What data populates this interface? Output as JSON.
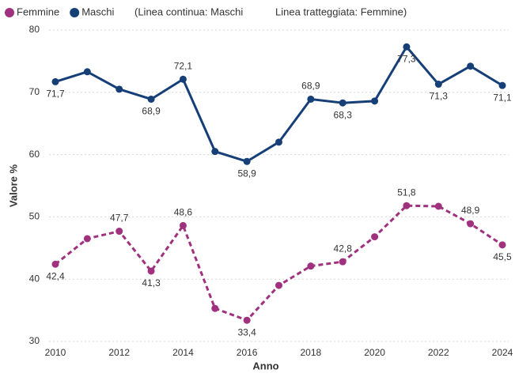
{
  "chart_data": {
    "type": "line",
    "legend": "top-left",
    "annotations": [
      "(Linea continua: Maschi",
      "Linea tratteggiata: Femmine)"
    ],
    "xlabel": "Anno",
    "ylabel": "Valore %",
    "x": [
      2010,
      2011,
      2012,
      2013,
      2014,
      2015,
      2016,
      2017,
      2018,
      2019,
      2020,
      2021,
      2022,
      2023,
      2024
    ],
    "xlim": [
      2010,
      2024
    ],
    "xticks": [
      2010,
      2012,
      2014,
      2016,
      2018,
      2020,
      2022,
      2024
    ],
    "ylim": [
      30,
      80
    ],
    "yticks": [
      30,
      40,
      50,
      60,
      70,
      80
    ],
    "grid": true,
    "series": [
      {
        "name": "Femmine",
        "color": "#a0317f",
        "line_style": "dashed",
        "values": [
          42.4,
          46.5,
          47.7,
          41.3,
          48.6,
          35.3,
          33.4,
          39.0,
          42.1,
          42.8,
          46.8,
          51.8,
          51.7,
          48.9,
          45.5
        ],
        "value_labels": [
          "42,4",
          null,
          "47,7",
          "41,3",
          "48,6",
          null,
          "33,4",
          null,
          null,
          "42,8",
          null,
          "51,8",
          null,
          "48,9",
          "45,5"
        ]
      },
      {
        "name": "Maschi",
        "color": "#163f78",
        "line_style": "solid",
        "values": [
          71.7,
          73.3,
          70.5,
          68.9,
          72.1,
          60.5,
          58.9,
          62.0,
          68.9,
          68.3,
          68.6,
          77.3,
          71.3,
          74.2,
          71.1
        ],
        "value_labels": [
          "71,7",
          null,
          null,
          "68,9",
          "72,1",
          null,
          "58,9",
          null,
          "68,9",
          "68,3",
          null,
          "77,3",
          "71,3",
          null,
          "71,1"
        ]
      }
    ]
  }
}
